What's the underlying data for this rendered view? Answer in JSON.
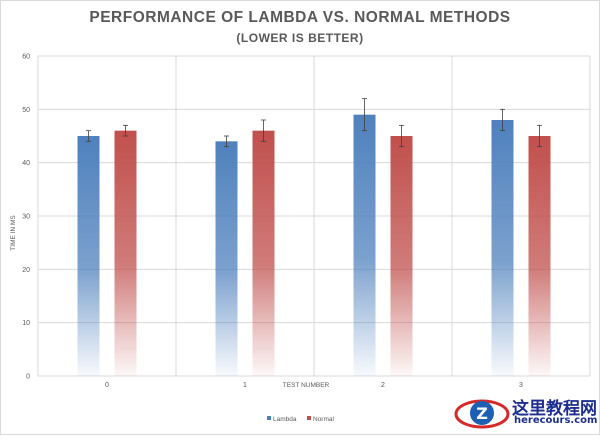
{
  "chart_data": {
    "type": "bar",
    "title": "PERFORMANCE OF LAMBDA VS. NORMAL METHODS",
    "subtitle": "(LOWER IS BETTER)",
    "xlabel": "TEST NUMBER",
    "ylabel": "TIME IN MS",
    "categories": [
      "0",
      "1",
      "2",
      "3"
    ],
    "ylim": [
      0,
      60
    ],
    "yticks": [
      0,
      10,
      20,
      30,
      40,
      50,
      60
    ],
    "grid": true,
    "legend_position": "bottom",
    "series": [
      {
        "name": "Lambda",
        "color": "#4f81bd",
        "values": [
          45,
          44,
          49,
          48
        ],
        "errors": [
          1,
          1,
          3,
          2
        ]
      },
      {
        "name": "Normal",
        "color": "#c0504d",
        "values": [
          46,
          46,
          45,
          45
        ],
        "errors": [
          1,
          2,
          2,
          2
        ]
      }
    ]
  },
  "watermark": {
    "cn_text": "这里教程网",
    "en_text": "herecours.com",
    "logo_letter": "Z"
  }
}
